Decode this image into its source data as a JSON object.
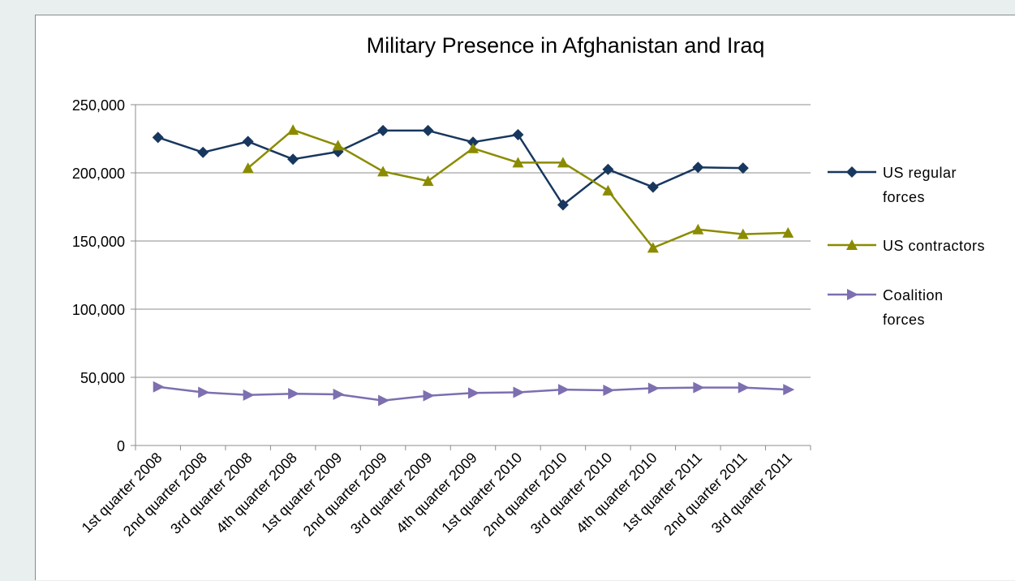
{
  "chart_data": {
    "type": "line",
    "title": "Military Presence in Afghanistan and Iraq",
    "xlabel": "",
    "ylabel": "",
    "categories": [
      "1st quarter 2008",
      "2nd quarter 2008",
      "3rd quarter 2008",
      "4th quarter 2008",
      "1st quarter 2009",
      "2nd quarter 2009",
      "3rd quarter 2009",
      "4th quarter 2009",
      "1st quarter 2010",
      "2nd quarter 2010",
      "3rd quarter 2010",
      "4th quarter 2010",
      "1st quarter 2011",
      "2nd quarter 2011",
      "3rd quarter 2011"
    ],
    "ylim": [
      0,
      250000
    ],
    "yticks": [
      0,
      50000,
      100000,
      150000,
      200000,
      250000
    ],
    "ytick_labels": [
      "0",
      "50,000",
      "100,000",
      "150,000",
      "200,000",
      "250,000"
    ],
    "grid": "horizontal",
    "legend_position": "right",
    "series": [
      {
        "name": "US regular forces",
        "legend_lines": [
          "US regular",
          "forces"
        ],
        "color": "#17375e",
        "marker": "diamond",
        "values": [
          226000,
          215000,
          223000,
          210000,
          215500,
          231000,
          231000,
          222500,
          228000,
          176500,
          202500,
          189500,
          204000,
          203500,
          null
        ]
      },
      {
        "name": "US contractors",
        "legend_lines": [
          "US contractors"
        ],
        "color": "#8b8b00",
        "marker": "triangle-up",
        "values": [
          null,
          null,
          203500,
          231500,
          220000,
          201000,
          194000,
          218000,
          207500,
          207500,
          187000,
          145000,
          158500,
          155000,
          156000
        ]
      },
      {
        "name": "Coalition forces",
        "legend_lines": [
          "Coalition",
          "forces"
        ],
        "color": "#7d6fb0",
        "marker": "triangle-right",
        "values": [
          43000,
          39000,
          37000,
          38000,
          37500,
          33000,
          36500,
          38500,
          39000,
          41000,
          40500,
          42000,
          42500,
          42500,
          41000
        ]
      }
    ]
  }
}
